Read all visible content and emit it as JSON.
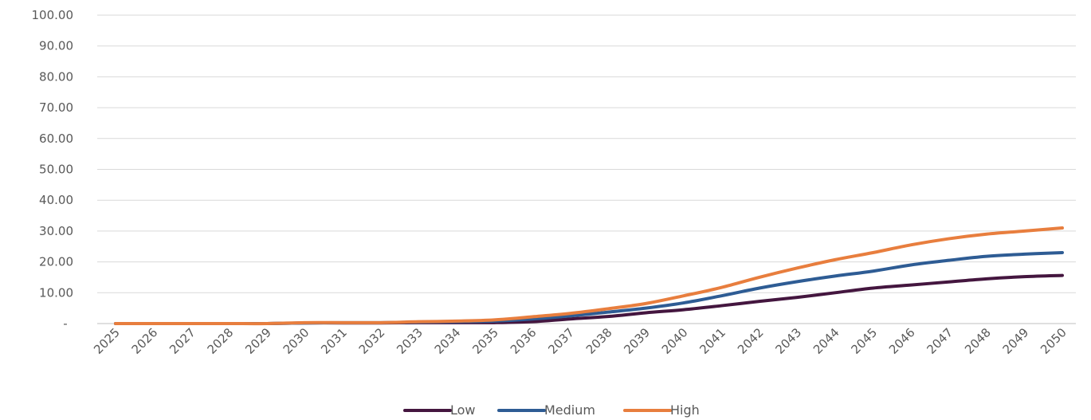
{
  "chart_data": {
    "type": "line",
    "title": "",
    "xlabel": "",
    "ylabel": "",
    "categories": [
      "2025",
      "2026",
      "2027",
      "2028",
      "2029",
      "2030",
      "2031",
      "2032",
      "2033",
      "2034",
      "2035",
      "2036",
      "2037",
      "2038",
      "2039",
      "2040",
      "2041",
      "2042",
      "2043",
      "2044",
      "2045",
      "2046",
      "2047",
      "2048",
      "2049",
      "2050"
    ],
    "ylim": [
      0,
      100
    ],
    "yticks": [
      0,
      10,
      20,
      30,
      40,
      50,
      60,
      70,
      80,
      90,
      100
    ],
    "ytick_labels": [
      "-",
      "10.00",
      "20.00",
      "30.00",
      "40.00",
      "50.00",
      "60.00",
      "70.00",
      "80.00",
      "90.00",
      "100.00"
    ],
    "grid": true,
    "legend_position": "bottom",
    "series": [
      {
        "name": "Low",
        "color": "#44163f",
        "values": [
          0,
          0,
          0,
          0,
          0,
          0.2,
          0.2,
          0.2,
          0.3,
          0.3,
          0.3,
          0.6,
          1.5,
          2.3,
          3.5,
          4.5,
          5.8,
          7.2,
          8.5,
          10.0,
          11.5,
          12.5,
          13.5,
          14.5,
          15.2,
          15.6
        ]
      },
      {
        "name": "Medium",
        "color": "#2e5c94",
        "values": [
          0,
          0,
          0,
          0,
          0,
          0.2,
          0.3,
          0.3,
          0.5,
          0.6,
          0.8,
          1.5,
          2.5,
          3.7,
          5.0,
          6.7,
          9.0,
          11.5,
          13.6,
          15.4,
          17.0,
          19.0,
          20.5,
          21.8,
          22.5,
          23.0
        ]
      },
      {
        "name": "High",
        "color": "#e87e3e",
        "values": [
          0,
          0,
          0,
          0,
          0,
          0.3,
          0.3,
          0.3,
          0.6,
          0.8,
          1.2,
          2.2,
          3.3,
          4.8,
          6.5,
          9.0,
          11.7,
          15.0,
          18.0,
          20.7,
          23.0,
          25.5,
          27.5,
          29.0,
          30.0,
          31.0
        ]
      }
    ]
  }
}
